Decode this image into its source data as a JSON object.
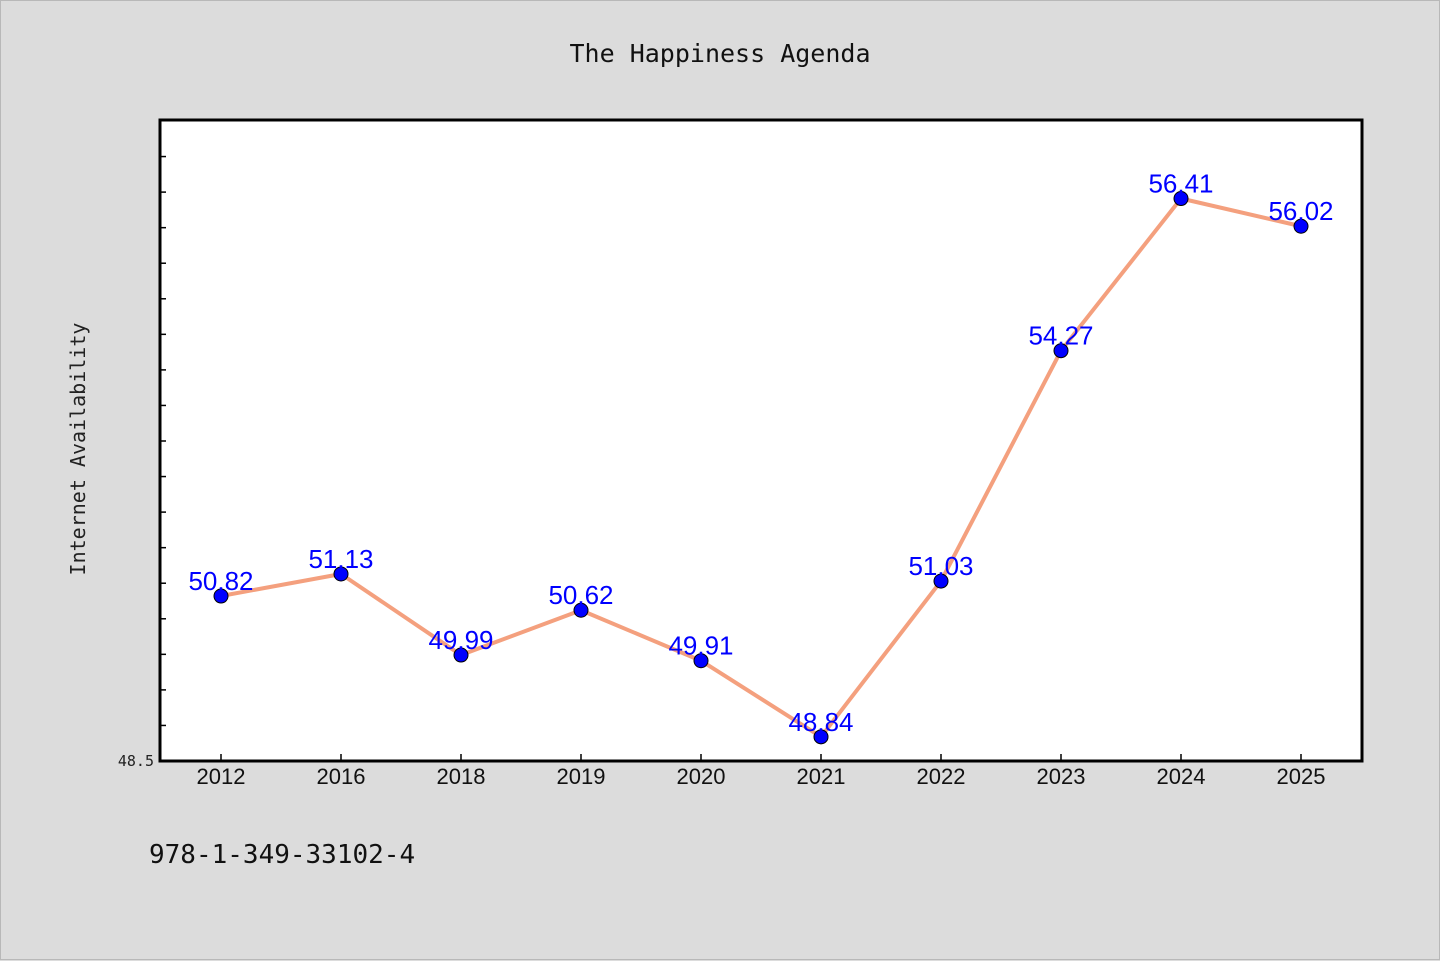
{
  "chart_data": {
    "type": "line",
    "title": "The Happiness Agenda",
    "xlabel": "",
    "ylabel": "Internet Availability",
    "categories": [
      "2012",
      "2016",
      "2018",
      "2019",
      "2020",
      "2021",
      "2022",
      "2023",
      "2024",
      "2025"
    ],
    "series": [
      {
        "values": [
          50.82,
          51.13,
          49.99,
          50.62,
          49.91,
          48.84,
          51.03,
          54.27,
          56.41,
          56.02
        ],
        "labels": [
          "50.82",
          "51.13",
          "49.99",
          "50.62",
          "49.91",
          "48.84",
          "51.03",
          "54.27",
          "56.41",
          "56.02"
        ]
      }
    ],
    "ylim": [
      48.5,
      57.5
    ],
    "ytick_labels": [
      "48.5"
    ],
    "grid": false,
    "colors": {
      "line": "#f4a07e",
      "marker": "#0000ff",
      "data_label": "#0000ff",
      "plot_background": "#ffffff",
      "figure_background": "#dcdcdc"
    }
  },
  "footer": {
    "isbn": "978-1-349-33102-4"
  }
}
